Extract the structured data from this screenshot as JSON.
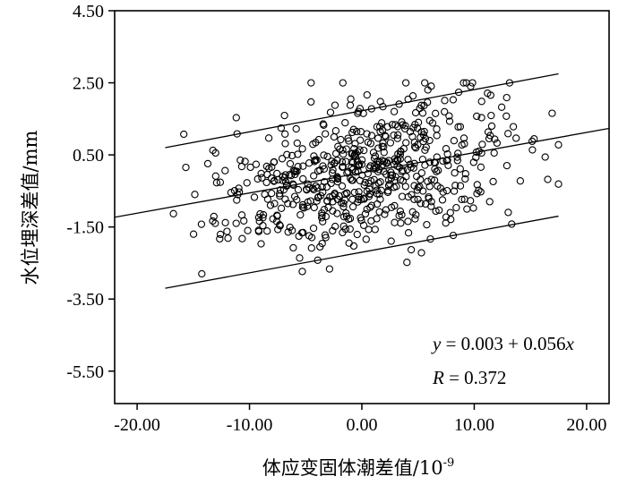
{
  "chart_data": {
    "type": "scatter",
    "title": "",
    "xlabel": "体应变固体潮差值/10",
    "xlabel_superscript": "-9",
    "ylabel": "水位埋深差值/mm",
    "xlim": [
      -22.0,
      22.0
    ],
    "ylim": [
      -6.4,
      4.5
    ],
    "x_ticks": [
      -20.0,
      -10.0,
      0.0,
      10.0,
      20.0
    ],
    "x_tick_labels": [
      "-20.00",
      "-10.00",
      "0.00",
      "10.00",
      "20.00"
    ],
    "y_ticks": [
      4.5,
      2.5,
      0.5,
      -1.5,
      -3.5,
      -5.5
    ],
    "y_tick_labels": [
      "4.50",
      "2.50",
      "0.50",
      "-1.50",
      "-3.50",
      "-5.50"
    ],
    "regression": {
      "intercept": 0.003,
      "slope": 0.056,
      "x_range": [
        -22.0,
        22.0
      ]
    },
    "bands": [
      {
        "x_range": [
          -17.5,
          17.5
        ],
        "y_range": [
          0.7,
          2.75
        ]
      },
      {
        "x_range": [
          -17.5,
          17.5
        ],
        "y_range": [
          -3.2,
          -1.2
        ]
      }
    ],
    "equation": {
      "lhs": "y",
      "rhs_prefix": " = 0.003 + 0.056",
      "rhs_var": "x"
    },
    "r_text": {
      "lhs": "R",
      "rhs": " = 0.372"
    },
    "marker_color": "#000000",
    "grid": false,
    "points_count": 620
  }
}
